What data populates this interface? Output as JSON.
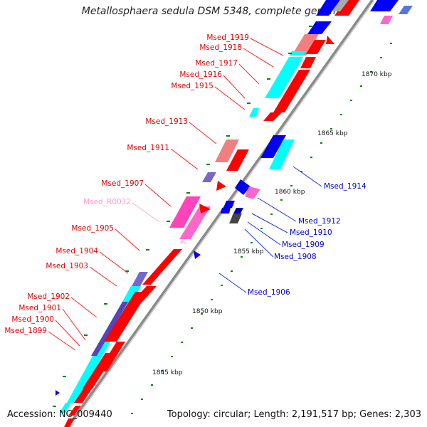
{
  "title": "Metallosphaera sedula DSM 5348, complete genome",
  "footer": {
    "accession": "Accession: NC_009440",
    "summary": "Topology: circular; Length: 2,191,517 bp; Genes: 2,303"
  },
  "colors": {
    "forward_cds": "#ff0000",
    "reverse_cds": "#0000ff",
    "rna": "#ff66cc",
    "label_forward": "#e00000",
    "label_reverse": "#0000cc",
    "label_rna": "#ff99cc",
    "cog_cyan": "#00ffff",
    "cog_pink": "#f08080",
    "cog_purple": "#6655cc",
    "backbone": "#888888",
    "tick": "#008800"
  },
  "kbp_ticks": [
    "1845 kbp",
    "1850 kbp",
    "1855 kbp",
    "1860 kbp",
    "1865 kbp",
    "1870 kbp"
  ],
  "forward_genes": [
    "Msed_1919",
    "Msed_1918",
    "Msed_1917",
    "Msed_1916",
    "Msed_1915",
    "Msed_1913",
    "Msed_1911",
    "Msed_1907",
    "Msed_1905",
    "Msed_1904",
    "Msed_1903",
    "Msed_1902",
    "Msed_1901",
    "Msed_1900",
    "Msed_1899"
  ],
  "rna_genes": [
    "Msed_R0032"
  ],
  "reverse_genes": [
    "Msed_1914",
    "Msed_1912",
    "Msed_1910",
    "Msed_1909",
    "Msed_1908",
    "Msed_1906"
  ]
}
